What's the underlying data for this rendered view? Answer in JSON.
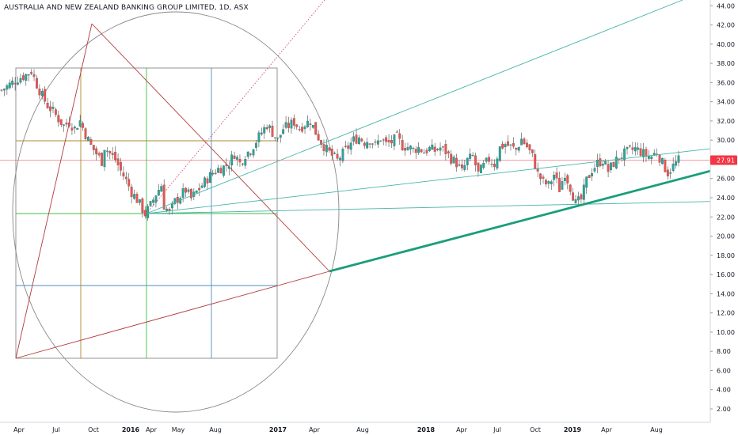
{
  "symbol": {
    "title": "AUSTRALIA AND NEW ZEALAND BANKING GROUP LIMITED, 1D, ASX"
  },
  "colors": {
    "up": "#26a69a",
    "down": "#ef5350",
    "wick": "#4a4a4a",
    "price_line": "#f23645",
    "circle": "#888888",
    "box": "#888888",
    "red_line": "#b23b3b",
    "brown_line": "#b0872e",
    "green_line": "#3fbf3f",
    "blue_line": "#4a90c0",
    "teal_line": "#46b5a8",
    "teal_thick": "#1a9e7a",
    "pink_dotted": "#d44a7a"
  },
  "chart_data": {
    "type": "candlestick",
    "title": "AUSTRALIA AND NEW ZEALAND BANKING GROUP LIMITED, 1D, ASX",
    "y_axis": {
      "range": [
        0.6,
        44.6
      ],
      "ticks": [
        "2.00",
        "4.00",
        "6.00",
        "8.00",
        "10.00",
        "12.00",
        "14.00",
        "16.00",
        "18.00",
        "20.00",
        "22.00",
        "24.00",
        "26.00",
        "28.00",
        "30.00",
        "32.00",
        "34.00",
        "36.00",
        "38.00",
        "40.00",
        "42.00",
        "44.00"
      ]
    },
    "x_axis": {
      "labels": [
        {
          "text": "Apr",
          "bold": false
        },
        {
          "text": "Jul",
          "bold": false
        },
        {
          "text": "Oct",
          "bold": false
        },
        {
          "text": "2016",
          "bold": true
        },
        {
          "text": "Apr",
          "bold": false
        },
        {
          "text": "May",
          "bold": false
        },
        {
          "text": "Aug",
          "bold": false
        },
        {
          "text": "2017",
          "bold": true
        },
        {
          "text": "Apr",
          "bold": false
        },
        {
          "text": "Aug",
          "bold": false
        },
        {
          "text": "2018",
          "bold": true
        },
        {
          "text": "Apr",
          "bold": false
        },
        {
          "text": "Jul",
          "bold": false
        },
        {
          "text": "Oct",
          "bold": false
        },
        {
          "text": "2019",
          "bold": true
        },
        {
          "text": "Apr",
          "bold": false
        },
        {
          "text": "Aug",
          "bold": false
        }
      ]
    },
    "last_price": "27.91",
    "price_path": [
      [
        0,
        35.2
      ],
      [
        3,
        35.8
      ],
      [
        6,
        36.4
      ],
      [
        9,
        36.8
      ],
      [
        11,
        37.2
      ],
      [
        13,
        35.8
      ],
      [
        15,
        34.6
      ],
      [
        17,
        33.6
      ],
      [
        19,
        33.0
      ],
      [
        21,
        32.2
      ],
      [
        23,
        31.5
      ],
      [
        25,
        31.9
      ],
      [
        27,
        31.2
      ],
      [
        29,
        32.0
      ],
      [
        31,
        30.6
      ],
      [
        33,
        29.4
      ],
      [
        35,
        28.6
      ],
      [
        37,
        27.8
      ],
      [
        38,
        29.3
      ],
      [
        40,
        28.6
      ],
      [
        42,
        28.0
      ],
      [
        44,
        26.8
      ],
      [
        46,
        25.8
      ],
      [
        48,
        24.6
      ],
      [
        50,
        23.8
      ],
      [
        52,
        22.8
      ],
      [
        53,
        22.3
      ],
      [
        55,
        23.2
      ],
      [
        57,
        24.4
      ],
      [
        59,
        25.3
      ],
      [
        60,
        23.2
      ],
      [
        62,
        22.4
      ],
      [
        64,
        23.6
      ],
      [
        66,
        24.2
      ],
      [
        68,
        24.8
      ],
      [
        70,
        23.9
      ],
      [
        72,
        24.6
      ],
      [
        74,
        25.3
      ],
      [
        76,
        26.0
      ],
      [
        78,
        26.6
      ],
      [
        80,
        27.0
      ],
      [
        82,
        27.2
      ],
      [
        84,
        27.6
      ],
      [
        86,
        28.6
      ],
      [
        88,
        27.6
      ],
      [
        90,
        28.5
      ],
      [
        92,
        29.0
      ],
      [
        94,
        29.9
      ],
      [
        96,
        30.8
      ],
      [
        98,
        31.6
      ],
      [
        100,
        30.8
      ],
      [
        102,
        30.0
      ],
      [
        104,
        31.2
      ],
      [
        106,
        31.5
      ],
      [
        108,
        31.9
      ],
      [
        110,
        31.2
      ],
      [
        112,
        31.7
      ],
      [
        114,
        32.0
      ],
      [
        116,
        30.8
      ],
      [
        118,
        29.8
      ],
      [
        120,
        29.0
      ],
      [
        122,
        28.4
      ],
      [
        124,
        27.9
      ],
      [
        126,
        28.6
      ],
      [
        128,
        29.3
      ],
      [
        130,
        30.0
      ],
      [
        132,
        30.3
      ],
      [
        134,
        29.8
      ],
      [
        136,
        30.1
      ],
      [
        138,
        29.4
      ],
      [
        140,
        30.2
      ],
      [
        142,
        29.6
      ],
      [
        144,
        29.8
      ],
      [
        146,
        30.3
      ],
      [
        148,
        29.4
      ],
      [
        150,
        29.3
      ],
      [
        152,
        29.0
      ],
      [
        154,
        29.2
      ],
      [
        156,
        28.8
      ],
      [
        158,
        29.1
      ],
      [
        160,
        28.9
      ],
      [
        162,
        29.2
      ],
      [
        164,
        28.8
      ],
      [
        166,
        28.1
      ],
      [
        168,
        27.6
      ],
      [
        170,
        26.7
      ],
      [
        172,
        27.9
      ],
      [
        174,
        28.3
      ],
      [
        176,
        26.5
      ],
      [
        178,
        27.3
      ],
      [
        180,
        28.0
      ],
      [
        182,
        27.5
      ],
      [
        184,
        29.2
      ],
      [
        186,
        29.6
      ],
      [
        188,
        29.3
      ],
      [
        190,
        29.0
      ],
      [
        192,
        30.1
      ],
      [
        194,
        29.3
      ],
      [
        196,
        28.3
      ],
      [
        198,
        26.5
      ],
      [
        200,
        25.6
      ],
      [
        202,
        25.3
      ],
      [
        204,
        26.4
      ],
      [
        206,
        24.9
      ],
      [
        208,
        26.6
      ],
      [
        210,
        25.1
      ],
      [
        212,
        23.4
      ],
      [
        214,
        23.8
      ],
      [
        216,
        25.8
      ],
      [
        218,
        26.9
      ],
      [
        220,
        27.6
      ],
      [
        222,
        27.9
      ],
      [
        224,
        26.8
      ],
      [
        226,
        27.6
      ],
      [
        228,
        28.2
      ],
      [
        230,
        28.6
      ],
      [
        232,
        28.9
      ],
      [
        234,
        29.1
      ],
      [
        236,
        28.8
      ],
      [
        238,
        28.4
      ],
      [
        240,
        28.3
      ],
      [
        242,
        28.8
      ],
      [
        244,
        27.6
      ],
      [
        246,
        26.6
      ],
      [
        248,
        27.3
      ],
      [
        250,
        27.9
      ]
    ]
  }
}
